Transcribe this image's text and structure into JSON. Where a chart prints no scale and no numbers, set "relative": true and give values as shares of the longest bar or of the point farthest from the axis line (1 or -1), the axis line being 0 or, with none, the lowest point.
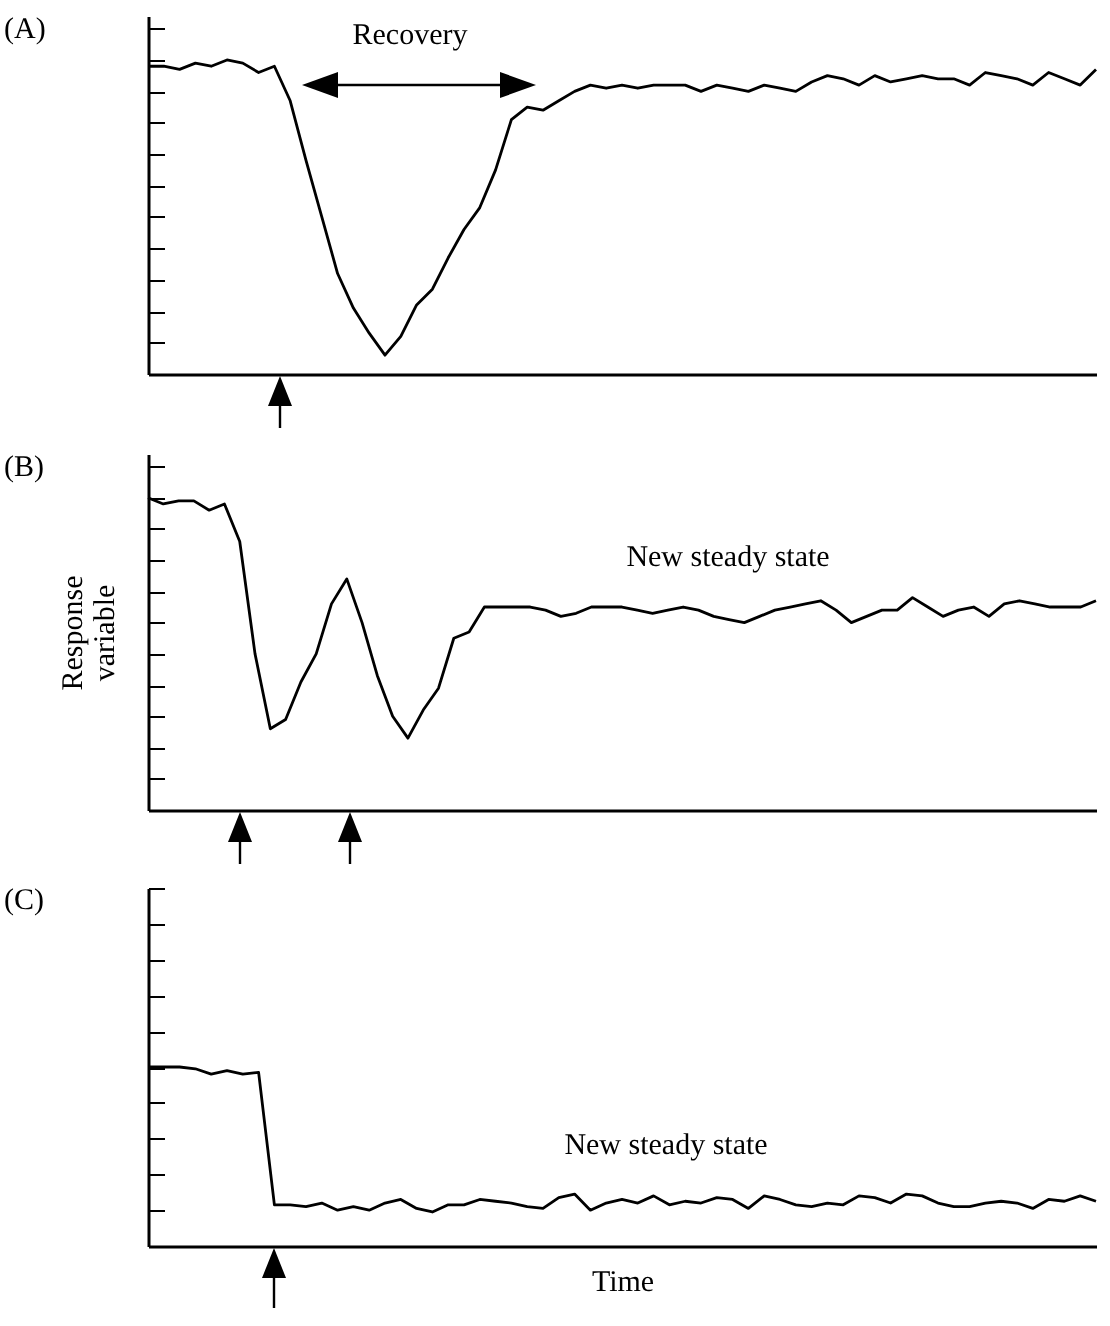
{
  "chart_data": [
    {
      "type": "line",
      "title": "(A)",
      "relative": true,
      "annotations": [
        "Recovery"
      ],
      "categories": [
        null,
        null,
        null,
        null,
        null,
        null,
        null,
        null,
        null,
        null,
        null,
        null,
        null,
        null,
        null,
        null,
        null,
        null,
        null,
        null,
        null,
        null,
        null,
        null,
        null,
        null,
        null,
        null,
        null,
        null,
        null,
        null,
        null,
        null,
        null,
        null,
        null,
        null,
        null,
        null,
        null,
        null,
        null,
        null,
        null,
        null,
        null,
        null,
        null,
        null,
        null,
        null,
        null,
        null,
        null,
        null,
        null,
        null,
        null,
        null,
        null
      ],
      "series": [
        {
          "color": "#000000",
          "values": [
            0.98,
            0.98,
            0.97,
            0.99,
            0.98,
            1.0,
            0.99,
            0.96,
            0.98,
            0.87,
            0.68,
            0.5,
            0.32,
            0.21,
            0.13,
            0.06,
            0.12,
            0.22,
            0.27,
            0.37,
            0.46,
            0.53,
            0.65,
            0.81,
            0.85,
            0.84,
            0.87,
            0.9,
            0.92,
            0.91,
            0.92,
            0.91,
            0.92,
            0.92,
            0.92,
            0.9,
            0.92,
            0.91,
            0.9,
            0.92,
            0.91,
            0.9,
            0.93,
            0.95,
            0.94,
            0.92,
            0.95,
            0.93,
            0.94,
            0.95,
            0.94,
            0.94,
            0.92,
            0.96,
            0.95,
            0.94,
            0.92,
            0.96,
            0.94,
            0.92,
            0.97
          ]
        }
      ]
    },
    {
      "type": "line",
      "title": "(B)",
      "ylabel": "Response variable",
      "relative": true,
      "annotations": [
        "New steady state"
      ],
      "categories": [
        null,
        null,
        null,
        null,
        null,
        null,
        null,
        null,
        null,
        null,
        null,
        null,
        null,
        null,
        null,
        null,
        null,
        null,
        null,
        null,
        null,
        null,
        null,
        null,
        null,
        null,
        null,
        null,
        null,
        null,
        null,
        null,
        null,
        null,
        null,
        null,
        null,
        null,
        null,
        null,
        null,
        null,
        null,
        null,
        null,
        null,
        null,
        null,
        null,
        null,
        null,
        null,
        null,
        null,
        null,
        null,
        null,
        null,
        null,
        null,
        null,
        null,
        null
      ],
      "series": [
        {
          "color": "#000000",
          "values": [
            1.0,
            0.98,
            0.99,
            0.99,
            0.96,
            0.98,
            0.86,
            0.5,
            0.26,
            0.29,
            0.41,
            0.5,
            0.66,
            0.74,
            0.6,
            0.43,
            0.3,
            0.23,
            0.32,
            0.39,
            0.55,
            0.57,
            0.65,
            0.65,
            0.65,
            0.65,
            0.64,
            0.62,
            0.63,
            0.65,
            0.65,
            0.65,
            0.64,
            0.63,
            0.64,
            0.65,
            0.64,
            0.62,
            0.61,
            0.6,
            0.62,
            0.64,
            0.65,
            0.66,
            0.67,
            0.64,
            0.6,
            0.62,
            0.64,
            0.64,
            0.68,
            0.65,
            0.62,
            0.64,
            0.65,
            0.62,
            0.66,
            0.67,
            0.66,
            0.65,
            0.65,
            0.65,
            0.67
          ]
        }
      ]
    },
    {
      "type": "line",
      "title": "(C)",
      "xlabel": "Time",
      "relative": true,
      "annotations": [
        "New steady state"
      ],
      "categories": [
        null,
        null,
        null,
        null,
        null,
        null,
        null,
        null,
        null,
        null,
        null,
        null,
        null,
        null,
        null,
        null,
        null,
        null,
        null,
        null,
        null,
        null,
        null,
        null,
        null,
        null,
        null,
        null,
        null,
        null,
        null,
        null,
        null,
        null,
        null,
        null,
        null,
        null,
        null,
        null,
        null,
        null,
        null,
        null,
        null,
        null,
        null,
        null,
        null,
        null,
        null,
        null,
        null,
        null,
        null,
        null,
        null,
        null,
        null,
        null,
        null
      ],
      "series": [
        {
          "color": "#000000",
          "values": [
            1.0,
            1.0,
            1.0,
            0.99,
            0.96,
            0.98,
            0.96,
            0.97,
            0.23,
            0.23,
            0.22,
            0.24,
            0.2,
            0.22,
            0.2,
            0.24,
            0.26,
            0.21,
            0.19,
            0.23,
            0.23,
            0.26,
            0.25,
            0.24,
            0.22,
            0.21,
            0.27,
            0.29,
            0.2,
            0.24,
            0.26,
            0.24,
            0.28,
            0.23,
            0.25,
            0.24,
            0.27,
            0.26,
            0.21,
            0.28,
            0.26,
            0.23,
            0.22,
            0.24,
            0.23,
            0.28,
            0.27,
            0.24,
            0.29,
            0.28,
            0.24,
            0.22,
            0.22,
            0.24,
            0.25,
            0.24,
            0.21,
            0.26,
            0.25,
            0.28,
            0.25
          ]
        }
      ]
    }
  ]
}
